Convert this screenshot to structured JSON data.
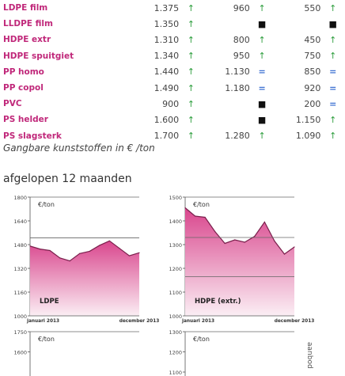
{
  "table": {
    "rows": [
      {
        "name": "LDPE film",
        "v1": "1.375",
        "i1": "up",
        "v2": "960",
        "i2": "up",
        "v3": "550",
        "i3": "up"
      },
      {
        "name": "LLDPE film",
        "v1": "1.350",
        "i1": "up",
        "v2": "",
        "i2": "none",
        "v3": "",
        "i3": "none"
      },
      {
        "name": "HDPE extr",
        "v1": "1.310",
        "i1": "up",
        "v2": "800",
        "i2": "up",
        "v3": "450",
        "i3": "up"
      },
      {
        "name": "HDPE spuitgiet",
        "v1": "1.340",
        "i1": "up",
        "v2": "950",
        "i2": "up",
        "v3": "750",
        "i3": "up"
      },
      {
        "name": "PP homo",
        "v1": "1.440",
        "i1": "up",
        "v2": "1.130",
        "i2": "eq",
        "v3": "850",
        "i3": "eq"
      },
      {
        "name": "PP copol",
        "v1": "1.490",
        "i1": "up",
        "v2": "1.180",
        "i2": "eq",
        "v3": "920",
        "i3": "eq"
      },
      {
        "name": "PVC",
        "v1": "900",
        "i1": "up",
        "v2": "",
        "i2": "none",
        "v3": "200",
        "i3": "eq"
      },
      {
        "name": "PS helder",
        "v1": "1.600",
        "i1": "up",
        "v2": "",
        "i2": "none",
        "v3": "1.150",
        "i3": "up"
      },
      {
        "name": "PS slagsterk",
        "v1": "1.700",
        "i1": "up",
        "v2": "1.280",
        "i2": "up",
        "v3": "1.090",
        "i3": "up"
      }
    ]
  },
  "caption": "Gangbare kunststoffen in € /ton",
  "section_title": "afgelopen 12 maanden",
  "side_label": "aanbod",
  "colors": {
    "accent": "#c0287a",
    "up": "#2e9e3e",
    "eq": "#3b6fd1",
    "fill_top": "#d9468d",
    "fill_bottom": "#fbeef4"
  },
  "chart_data": [
    {
      "type": "area",
      "series_label": "LDPE",
      "unit_label": "€/ton",
      "x_start_label": "januari 2013",
      "x_end_label": "december 2013",
      "ylim": [
        1000,
        1800
      ],
      "yticks": [
        "1800",
        "1640",
        "1480",
        "1320",
        "1160",
        "1000"
      ],
      "values": [
        1470,
        1450,
        1440,
        1390,
        1370,
        1420,
        1435,
        1475,
        1505,
        1455,
        1405,
        1425
      ],
      "reference_lines": [
        1525
      ]
    },
    {
      "type": "area",
      "series_label": "HDPE (extr.)",
      "unit_label": "€/ton",
      "x_start_label": "januari 2013",
      "x_end_label": "december 2013",
      "ylim": [
        1000,
        1500
      ],
      "yticks": [
        "1500",
        "1400",
        "1300",
        "1200",
        "1100",
        "1000"
      ],
      "values": [
        1455,
        1420,
        1415,
        1355,
        1305,
        1320,
        1310,
        1335,
        1395,
        1315,
        1260,
        1290
      ],
      "reference_lines": [
        1330,
        1165
      ]
    },
    {
      "type": "area",
      "series_label": "",
      "unit_label": "€/ton",
      "x_start_label": "",
      "x_end_label": "",
      "ylim": [
        1400,
        1750
      ],
      "yticks": [
        "1750",
        "1600"
      ],
      "values": [],
      "reference_lines": []
    },
    {
      "type": "area",
      "series_label": "",
      "unit_label": "€/ton",
      "x_start_label": "",
      "x_end_label": "",
      "ylim": [
        1000,
        1300
      ],
      "yticks": [
        "1300",
        "1200",
        "1100"
      ],
      "values": [],
      "reference_lines": []
    }
  ]
}
